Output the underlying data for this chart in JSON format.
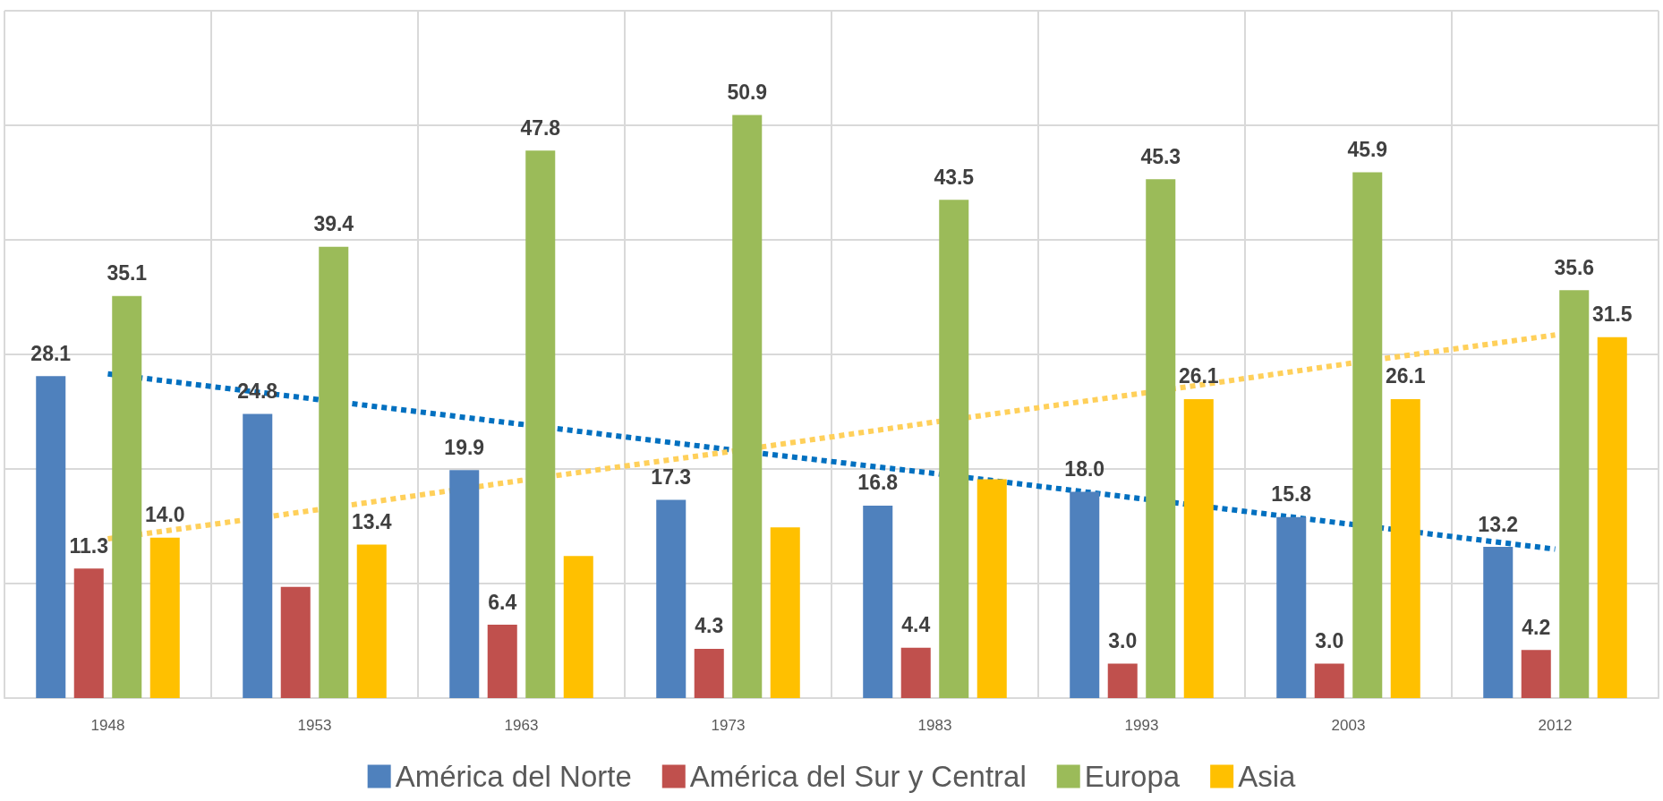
{
  "chart_data": {
    "type": "bar",
    "categories": [
      "1948",
      "1953",
      "1963",
      "1973",
      "1983",
      "1993",
      "2003",
      "2012"
    ],
    "series": [
      {
        "name": "América del Norte",
        "color": "#4f81bd",
        "values": [
          28.1,
          24.8,
          19.9,
          17.3,
          16.8,
          18.0,
          15.8,
          13.2
        ],
        "value_labels": [
          "28.1",
          "24.8",
          "19.9",
          "17.3",
          "16.8",
          "18.0",
          "15.8",
          "13.2"
        ]
      },
      {
        "name": "América del Sur y Central",
        "color": "#c0504d",
        "values": [
          11.3,
          9.7,
          6.4,
          4.3,
          4.4,
          3.0,
          3.0,
          4.2
        ],
        "value_labels": [
          "11.3",
          null,
          "6.4",
          "4.3",
          "4.4",
          "3.0",
          "3.0",
          "4.2"
        ]
      },
      {
        "name": "Europa",
        "color": "#9bbb59",
        "values": [
          35.1,
          39.4,
          47.8,
          50.9,
          43.5,
          45.3,
          45.9,
          35.6
        ],
        "value_labels": [
          "35.1",
          "39.4",
          "47.8",
          "50.9",
          "43.5",
          "45.3",
          "45.9",
          "35.6"
        ]
      },
      {
        "name": "Asia",
        "color": "#ffc000",
        "values": [
          14.0,
          13.4,
          12.4,
          14.9,
          19.1,
          26.1,
          26.1,
          31.5
        ],
        "value_labels": [
          "14.0",
          "13.4",
          null,
          null,
          null,
          "26.1",
          "26.1",
          "31.5"
        ]
      },
      {
        "type": "line",
        "color": "#0070c0",
        "values": [
          28.3,
          26.1,
          23.9,
          21.7,
          19.6,
          17.4,
          15.2,
          13.0
        ],
        "line_style": "dotted"
      },
      {
        "type": "line",
        "color": "#ffd05a",
        "values": [
          13.9,
          16.4,
          19.0,
          21.5,
          24.1,
          26.6,
          29.2,
          31.7
        ],
        "line_style": "dotted"
      }
    ],
    "ylim": [
      0,
      60
    ],
    "yticks": [
      {
        "value": 0,
        "label": null
      },
      {
        "value": 10,
        "label": null
      },
      {
        "value": 20,
        "label": null
      },
      {
        "value": 30,
        "label": null
      },
      {
        "value": 40,
        "label": null
      },
      {
        "value": 50,
        "label": null
      },
      {
        "value": 60,
        "label": null
      }
    ],
    "tick_labels": "x",
    "grid": true,
    "legend": "bottom",
    "marker": "none"
  }
}
